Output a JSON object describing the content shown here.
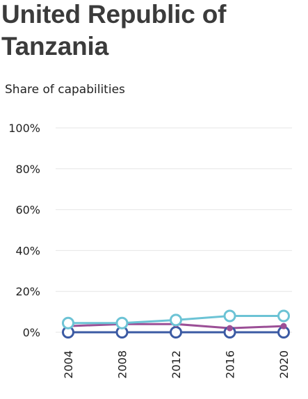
{
  "title": "United Republic of Tanzania",
  "chart_data": {
    "type": "line",
    "subtitle": "Share of capabilities",
    "x": [
      "2004",
      "2008",
      "2012",
      "2016",
      "2020"
    ],
    "ylim": [
      0,
      100
    ],
    "y_ticks": [
      "0%",
      "20%",
      "40%",
      "60%",
      "80%",
      "100%"
    ],
    "y_tick_values": [
      0,
      20,
      40,
      60,
      80,
      100
    ],
    "grid": true,
    "series": [
      {
        "color": "#6cc3d5",
        "values": [
          4.5,
          4.5,
          6,
          8,
          8
        ]
      },
      {
        "color": "#9b4f96",
        "values": [
          3,
          4,
          4,
          2,
          3
        ]
      },
      {
        "color": "#3b5aa3",
        "values": [
          0,
          0,
          0,
          0,
          0
        ]
      }
    ]
  }
}
